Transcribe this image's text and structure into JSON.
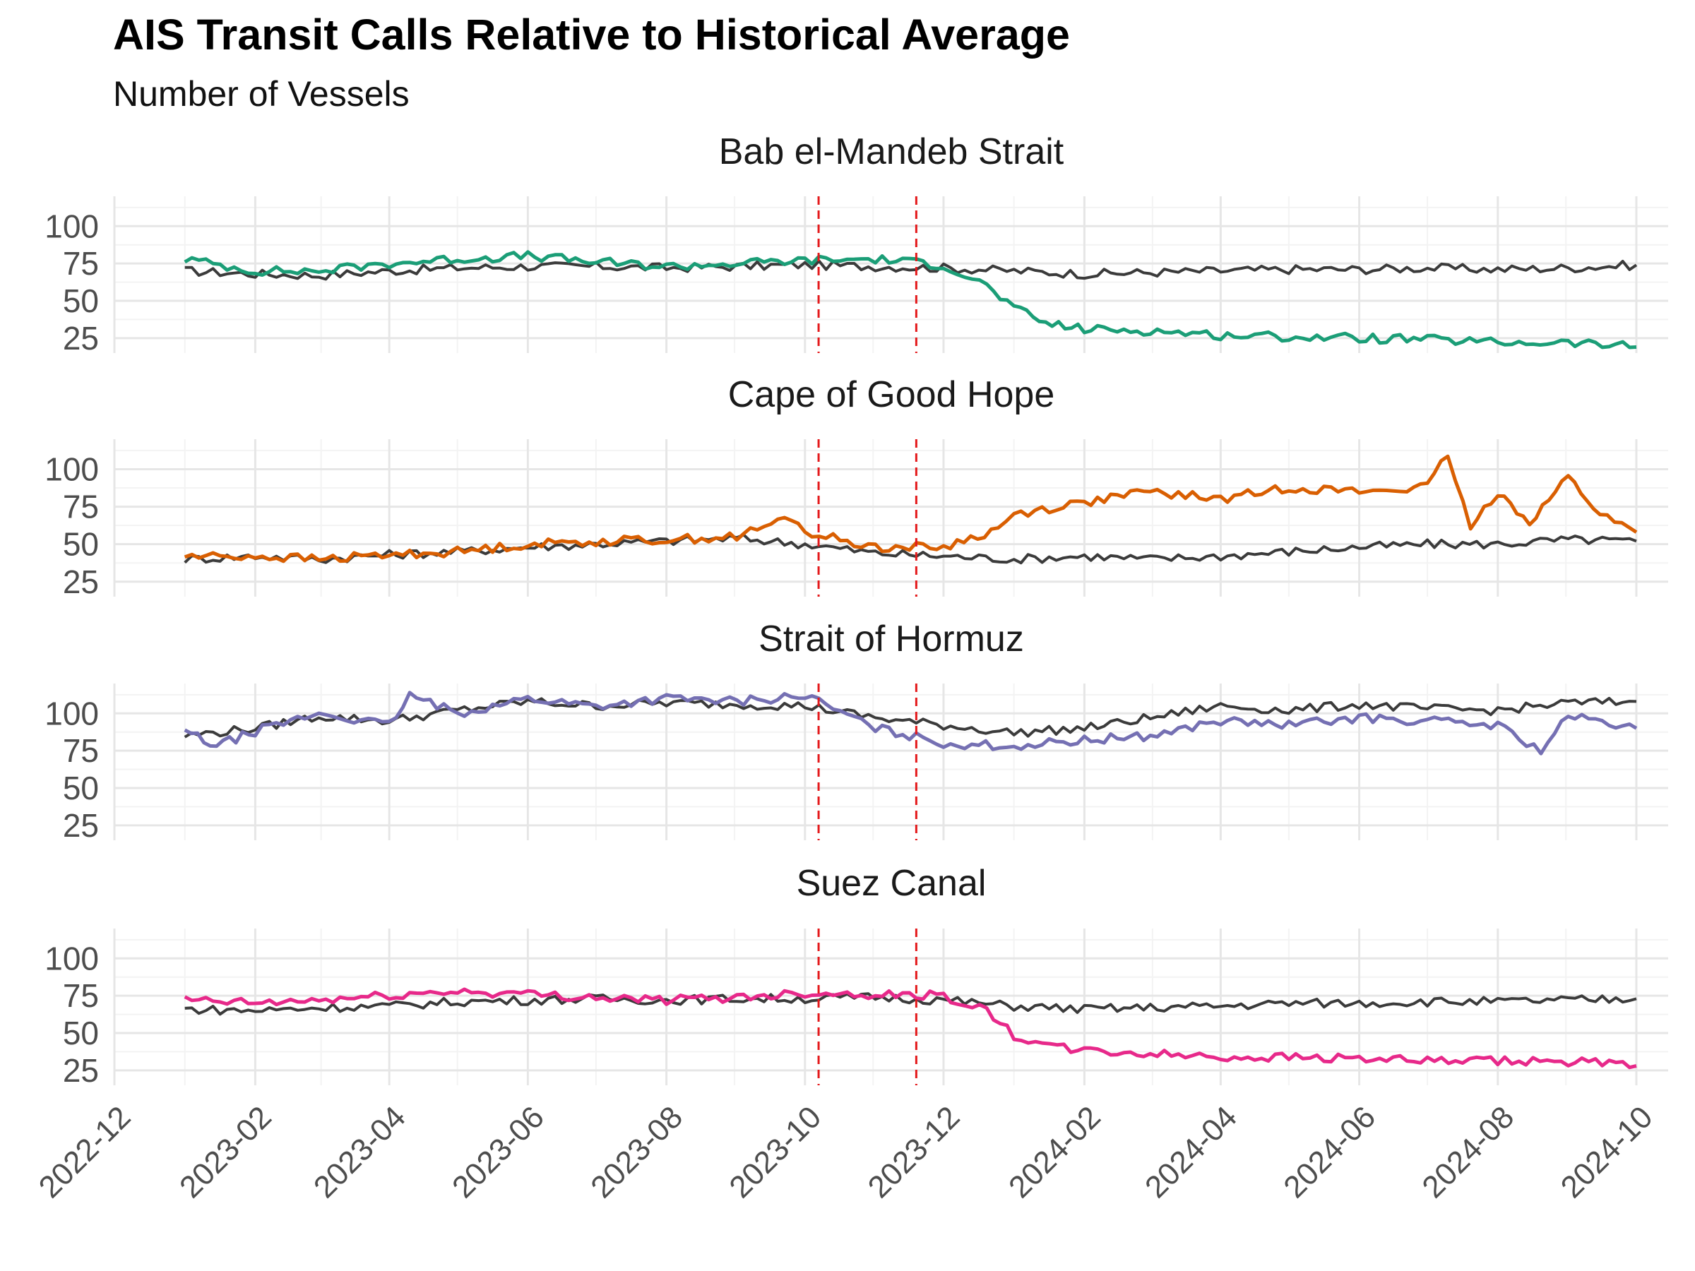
{
  "title": "AIS Transit Calls Relative to Historical Average",
  "subtitle": "Number of Vessels",
  "chart_data": {
    "type": "line",
    "facets": [
      "Bab el-Mandeb Strait",
      "Cape of Good Hope",
      "Strait of Hormuz",
      "Suez Canal"
    ],
    "x_tick_labels": [
      "2022-12",
      "2023-02",
      "2023-04",
      "2023-06",
      "2023-08",
      "2023-10",
      "2023-12",
      "2024-02",
      "2024-04",
      "2024-06",
      "2024-08",
      "2024-10"
    ],
    "y_tick_labels": [
      "25",
      "50",
      "75",
      "100"
    ],
    "xlim": [
      "2022-12-01",
      "2024-10-15"
    ],
    "ylim": [
      15,
      120
    ],
    "grid": true,
    "legend": "none",
    "reference_lines": {
      "dates": [
        "2023-10-07",
        "2023-11-19"
      ],
      "color": "#e41a1c",
      "style": "dashed"
    },
    "series": [
      {
        "facet": "Bab el-Mandeb Strait",
        "role": "actual",
        "color": "#1b9e77",
        "points": [
          [
            "2023-01-01",
            78
          ],
          [
            "2023-02-01",
            70
          ],
          [
            "2023-03-01",
            70
          ],
          [
            "2023-04-01",
            75
          ],
          [
            "2023-05-01",
            78
          ],
          [
            "2023-06-01",
            80
          ],
          [
            "2023-07-01",
            76
          ],
          [
            "2023-08-01",
            73
          ],
          [
            "2023-09-01",
            75
          ],
          [
            "2023-10-01",
            77
          ],
          [
            "2023-11-01",
            78
          ],
          [
            "2023-12-01",
            74
          ],
          [
            "2023-12-20",
            60
          ],
          [
            "2024-01-01",
            45
          ],
          [
            "2024-01-15",
            35
          ],
          [
            "2024-02-01",
            31
          ],
          [
            "2024-03-01",
            30
          ],
          [
            "2024-04-01",
            27
          ],
          [
            "2024-05-01",
            26
          ],
          [
            "2024-06-01",
            25
          ],
          [
            "2024-07-01",
            24
          ],
          [
            "2024-08-01",
            22
          ],
          [
            "2024-09-01",
            22
          ],
          [
            "2024-10-01",
            19
          ]
        ]
      },
      {
        "facet": "Bab el-Mandeb Strait",
        "role": "historical",
        "color": "#3b3b3b",
        "points": [
          [
            "2023-01-01",
            70
          ],
          [
            "2023-02-01",
            68
          ],
          [
            "2023-03-01",
            67
          ],
          [
            "2023-04-01",
            70
          ],
          [
            "2023-05-01",
            72
          ],
          [
            "2023-06-01",
            73
          ],
          [
            "2023-07-01",
            73
          ],
          [
            "2023-08-01",
            72
          ],
          [
            "2023-09-01",
            73
          ],
          [
            "2023-10-01",
            74
          ],
          [
            "2023-11-01",
            73
          ],
          [
            "2023-12-01",
            72
          ],
          [
            "2024-01-01",
            70
          ],
          [
            "2024-02-01",
            68
          ],
          [
            "2024-03-01",
            69
          ],
          [
            "2024-04-01",
            70
          ],
          [
            "2024-05-01",
            71
          ],
          [
            "2024-06-01",
            71
          ],
          [
            "2024-07-01",
            72
          ],
          [
            "2024-08-01",
            71
          ],
          [
            "2024-09-01",
            72
          ],
          [
            "2024-10-01",
            74
          ]
        ]
      },
      {
        "facet": "Cape of Good Hope",
        "role": "actual",
        "color": "#d95f02",
        "points": [
          [
            "2023-01-01",
            42
          ],
          [
            "2023-02-01",
            42
          ],
          [
            "2023-03-01",
            40
          ],
          [
            "2023-04-01",
            43
          ],
          [
            "2023-05-01",
            45
          ],
          [
            "2023-06-01",
            50
          ],
          [
            "2023-07-01",
            52
          ],
          [
            "2023-08-01",
            53
          ],
          [
            "2023-09-01",
            55
          ],
          [
            "2023-09-25",
            68
          ],
          [
            "2023-10-01",
            58
          ],
          [
            "2023-11-01",
            48
          ],
          [
            "2023-12-01",
            48
          ],
          [
            "2023-12-25",
            60
          ],
          [
            "2024-01-01",
            70
          ],
          [
            "2024-02-01",
            78
          ],
          [
            "2024-03-01",
            85
          ],
          [
            "2024-04-01",
            80
          ],
          [
            "2024-05-01",
            88
          ],
          [
            "2024-06-01",
            85
          ],
          [
            "2024-07-01",
            88
          ],
          [
            "2024-07-10",
            110
          ],
          [
            "2024-07-20",
            60
          ],
          [
            "2024-08-01",
            85
          ],
          [
            "2024-08-15",
            65
          ],
          [
            "2024-09-01",
            95
          ],
          [
            "2024-09-15",
            70
          ],
          [
            "2024-10-01",
            58
          ]
        ]
      },
      {
        "facet": "Cape of Good Hope",
        "role": "historical",
        "color": "#3b3b3b",
        "points": [
          [
            "2023-01-01",
            40
          ],
          [
            "2023-02-01",
            42
          ],
          [
            "2023-03-01",
            40
          ],
          [
            "2023-04-01",
            43
          ],
          [
            "2023-05-01",
            45
          ],
          [
            "2023-06-01",
            48
          ],
          [
            "2023-07-01",
            50
          ],
          [
            "2023-08-01",
            52
          ],
          [
            "2023-09-01",
            54
          ],
          [
            "2023-10-01",
            50
          ],
          [
            "2023-11-01",
            44
          ],
          [
            "2023-12-01",
            42
          ],
          [
            "2024-01-01",
            40
          ],
          [
            "2024-02-01",
            42
          ],
          [
            "2024-03-01",
            40
          ],
          [
            "2024-04-01",
            42
          ],
          [
            "2024-05-01",
            45
          ],
          [
            "2024-06-01",
            48
          ],
          [
            "2024-07-01",
            50
          ],
          [
            "2024-08-01",
            50
          ],
          [
            "2024-09-01",
            53
          ],
          [
            "2024-10-01",
            52
          ]
        ]
      },
      {
        "facet": "Strait of Hormuz",
        "role": "actual",
        "color": "#7570b3",
        "points": [
          [
            "2023-01-01",
            88
          ],
          [
            "2023-01-15",
            78
          ],
          [
            "2023-02-01",
            88
          ],
          [
            "2023-03-01",
            100
          ],
          [
            "2023-04-01",
            92
          ],
          [
            "2023-04-10",
            112
          ],
          [
            "2023-05-01",
            100
          ],
          [
            "2023-06-01",
            110
          ],
          [
            "2023-07-01",
            105
          ],
          [
            "2023-08-01",
            110
          ],
          [
            "2023-09-01",
            108
          ],
          [
            "2023-10-01",
            112
          ],
          [
            "2023-11-01",
            90
          ],
          [
            "2023-12-01",
            80
          ],
          [
            "2024-01-01",
            78
          ],
          [
            "2024-02-01",
            82
          ],
          [
            "2024-03-01",
            85
          ],
          [
            "2024-04-01",
            95
          ],
          [
            "2024-05-01",
            92
          ],
          [
            "2024-06-01",
            97
          ],
          [
            "2024-07-01",
            95
          ],
          [
            "2024-08-01",
            92
          ],
          [
            "2024-08-20",
            75
          ],
          [
            "2024-09-01",
            98
          ],
          [
            "2024-10-01",
            90
          ]
        ]
      },
      {
        "facet": "Strait of Hormuz",
        "role": "historical",
        "color": "#3b3b3b",
        "points": [
          [
            "2023-01-01",
            85
          ],
          [
            "2023-02-01",
            90
          ],
          [
            "2023-03-01",
            98
          ],
          [
            "2023-04-01",
            95
          ],
          [
            "2023-05-01",
            102
          ],
          [
            "2023-06-01",
            108
          ],
          [
            "2023-07-01",
            105
          ],
          [
            "2023-08-01",
            107
          ],
          [
            "2023-09-01",
            106
          ],
          [
            "2023-10-01",
            105
          ],
          [
            "2023-11-01",
            97
          ],
          [
            "2023-12-01",
            92
          ],
          [
            "2024-01-01",
            87
          ],
          [
            "2024-02-01",
            90
          ],
          [
            "2024-03-01",
            97
          ],
          [
            "2024-04-01",
            105
          ],
          [
            "2024-05-01",
            102
          ],
          [
            "2024-06-01",
            106
          ],
          [
            "2024-07-01",
            103
          ],
          [
            "2024-08-01",
            102
          ],
          [
            "2024-09-01",
            107
          ],
          [
            "2024-10-01",
            108
          ]
        ]
      },
      {
        "facet": "Suez Canal",
        "role": "actual",
        "color": "#e7298a",
        "points": [
          [
            "2023-01-01",
            72
          ],
          [
            "2023-02-01",
            70
          ],
          [
            "2023-03-01",
            72
          ],
          [
            "2023-04-01",
            75
          ],
          [
            "2023-05-01",
            78
          ],
          [
            "2023-06-01",
            76
          ],
          [
            "2023-07-01",
            74
          ],
          [
            "2023-08-01",
            72
          ],
          [
            "2023-09-01",
            74
          ],
          [
            "2023-10-01",
            77
          ],
          [
            "2023-11-01",
            76
          ],
          [
            "2023-12-01",
            75
          ],
          [
            "2023-12-20",
            65
          ],
          [
            "2024-01-01",
            48
          ],
          [
            "2024-01-20",
            40
          ],
          [
            "2024-02-01",
            38
          ],
          [
            "2024-03-01",
            36
          ],
          [
            "2024-04-01",
            34
          ],
          [
            "2024-05-01",
            34
          ],
          [
            "2024-06-01",
            33
          ],
          [
            "2024-07-01",
            31
          ],
          [
            "2024-08-01",
            31
          ],
          [
            "2024-09-01",
            31
          ],
          [
            "2024-10-01",
            28
          ]
        ]
      },
      {
        "facet": "Suez Canal",
        "role": "historical",
        "color": "#3b3b3b",
        "points": [
          [
            "2023-01-01",
            66
          ],
          [
            "2023-02-01",
            65
          ],
          [
            "2023-03-01",
            67
          ],
          [
            "2023-04-01",
            68
          ],
          [
            "2023-05-01",
            71
          ],
          [
            "2023-06-01",
            72
          ],
          [
            "2023-07-01",
            73
          ],
          [
            "2023-08-01",
            72
          ],
          [
            "2023-09-01",
            73
          ],
          [
            "2023-10-01",
            73
          ],
          [
            "2023-11-01",
            74
          ],
          [
            "2023-12-01",
            72
          ],
          [
            "2024-01-01",
            68
          ],
          [
            "2024-02-01",
            66
          ],
          [
            "2024-03-01",
            67
          ],
          [
            "2024-04-01",
            68
          ],
          [
            "2024-05-01",
            70
          ],
          [
            "2024-06-01",
            70
          ],
          [
            "2024-07-01",
            71
          ],
          [
            "2024-08-01",
            71
          ],
          [
            "2024-09-01",
            72
          ],
          [
            "2024-10-01",
            73
          ]
        ]
      }
    ]
  }
}
